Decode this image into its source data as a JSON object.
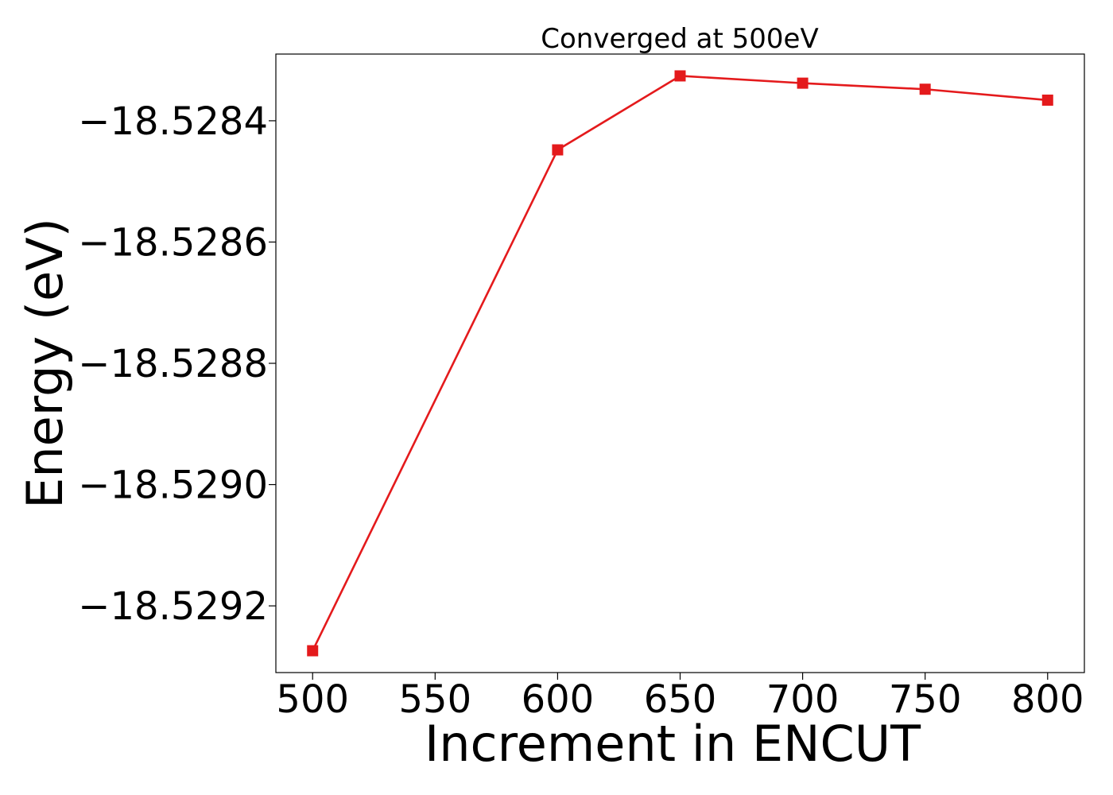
{
  "chart_data": {
    "type": "line",
    "title": "Converged at 500eV",
    "xlabel": "Increment in ENCUT",
    "ylabel": "Energy (eV)",
    "xlim": [
      485,
      815
    ],
    "ylim": [
      -18.52931,
      -18.52829
    ],
    "x_ticks": [
      500,
      550,
      600,
      650,
      700,
      750,
      800
    ],
    "x_tick_labels": [
      "500",
      "550",
      "600",
      "650",
      "700",
      "750",
      "800"
    ],
    "y_ticks": [
      -18.5284,
      -18.5286,
      -18.5288,
      -18.529,
      -18.5292
    ],
    "y_tick_labels": [
      "−18.5284",
      "−18.5286",
      "−18.5288",
      "−18.5290",
      "−18.5292"
    ],
    "grid": false,
    "series": [
      {
        "color": "#e41a1c",
        "marker": "square",
        "x": [
          500,
          600,
          650,
          700,
          750,
          800
        ],
        "y": [
          -18.529274,
          -18.528448,
          -18.528326,
          -18.528338,
          -18.528348,
          -18.528366
        ]
      }
    ]
  }
}
